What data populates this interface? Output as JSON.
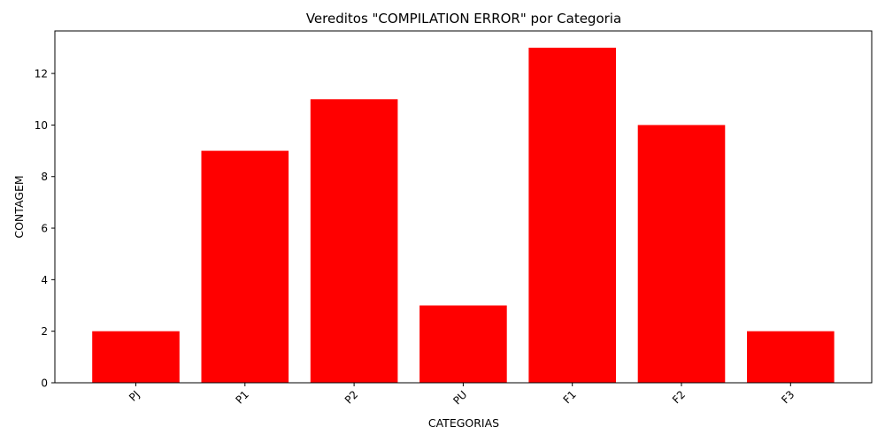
{
  "chart_data": {
    "type": "bar",
    "title": "Vereditos \"COMPILATION ERROR\" por Categoria",
    "xlabel": "CATEGORIAS",
    "ylabel": "CONTAGEM",
    "categories": [
      "PJ",
      "P1",
      "P2",
      "PU",
      "F1",
      "F2",
      "F3"
    ],
    "values": [
      2,
      9,
      11,
      3,
      13,
      10,
      2
    ],
    "ylim": [
      0,
      13.65
    ],
    "yticks": [
      0,
      2,
      4,
      6,
      8,
      10,
      12
    ],
    "bar_color": "#ff0000",
    "grid": false,
    "xtick_rotation": "45 degrees"
  }
}
